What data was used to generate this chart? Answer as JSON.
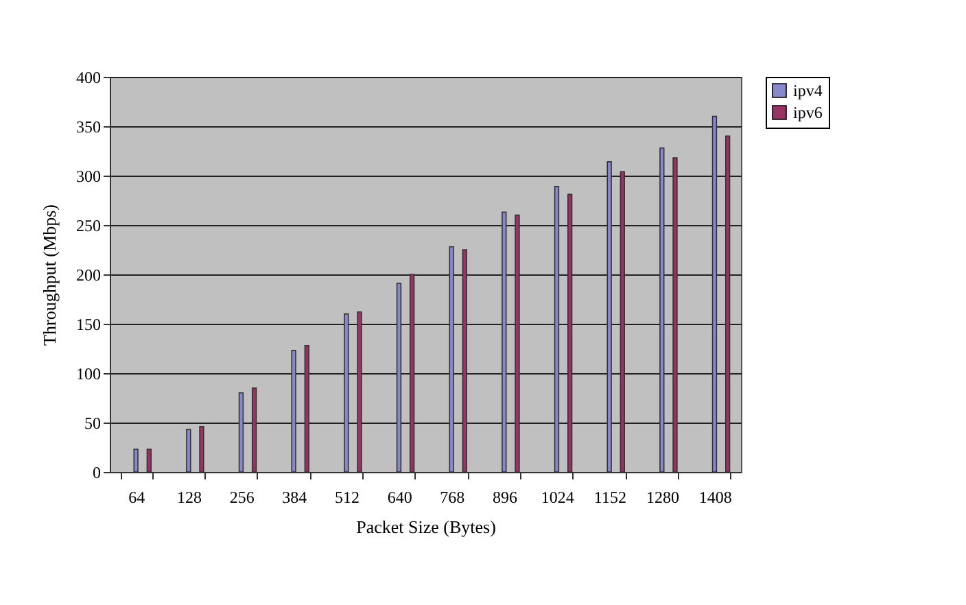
{
  "chart_data": {
    "type": "bar",
    "xlabel": "Packet Size (Bytes)",
    "ylabel": "Throughput (Mbps)",
    "categories": [
      "64",
      "128",
      "256",
      "384",
      "512",
      "640",
      "768",
      "896",
      "1024",
      "1152",
      "1280",
      "1408"
    ],
    "series": [
      {
        "name": "ipv4",
        "color": "#8888cc",
        "values": [
          23,
          43,
          80,
          123,
          160,
          191,
          228,
          263,
          289,
          314,
          328,
          360
        ]
      },
      {
        "name": "ipv6",
        "color": "#993366",
        "values": [
          23,
          46,
          85,
          128,
          162,
          200,
          225,
          260,
          281,
          304,
          318,
          340
        ]
      }
    ],
    "ylim": [
      0,
      400
    ],
    "yticks": [
      0,
      50,
      100,
      150,
      200,
      250,
      300,
      350,
      400
    ],
    "grid": "y",
    "legend": "right"
  }
}
